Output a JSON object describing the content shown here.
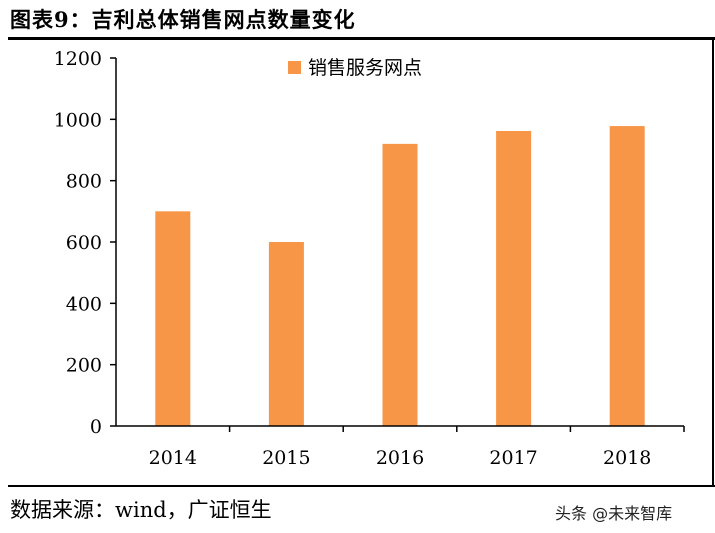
{
  "figure": {
    "title": "图表9：吉利总体销售网点数量变化",
    "source": "数据来源：wind，广证恒生",
    "watermark": "头条 @未来智库"
  },
  "chart_data": {
    "type": "bar",
    "title": "",
    "xlabel": "",
    "ylabel": "",
    "categories": [
      "2014",
      "2015",
      "2016",
      "2017",
      "2018"
    ],
    "series": [
      {
        "name": "销售服务网点",
        "values": [
          700,
          600,
          920,
          962,
          978
        ],
        "color": "#F79646"
      }
    ],
    "ylim": [
      0,
      1200
    ],
    "yticks": [
      0,
      200,
      400,
      600,
      800,
      1000,
      1200
    ],
    "grid": false,
    "legend": "top-center"
  }
}
